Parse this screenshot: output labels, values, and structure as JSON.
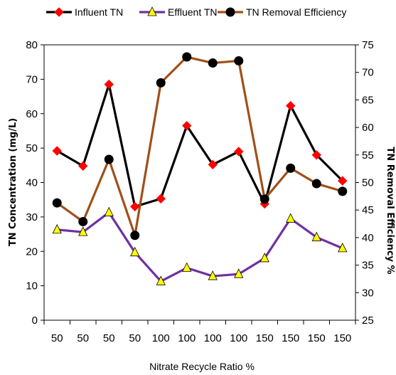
{
  "chart_data": {
    "type": "line",
    "xlabel": "Nitrate Recycle Ratio %",
    "ylabel": "TN Concentration (mg/L)",
    "y2label": "TN Removal Efficiency %",
    "categories": [
      "50",
      "50",
      "50",
      "50",
      "100",
      "100",
      "100",
      "100",
      "150",
      "150",
      "150",
      "150"
    ],
    "ylim": [
      0,
      80
    ],
    "yticks": [
      0,
      10,
      20,
      30,
      40,
      50,
      60,
      70,
      80
    ],
    "y2lim": [
      25,
      75
    ],
    "y2ticks": [
      25,
      30,
      35,
      40,
      45,
      50,
      55,
      60,
      65,
      70,
      75
    ],
    "legend_position": "top",
    "grid": false,
    "series": [
      {
        "name": "Influent TN",
        "axis": "left",
        "line_color": "#000000",
        "marker": "diamond",
        "marker_color": "#ff0000",
        "values": [
          49.2,
          44.8,
          68.5,
          33.0,
          35.3,
          56.5,
          45.2,
          49.0,
          33.8,
          62.3,
          48.0,
          40.5
        ]
      },
      {
        "name": "Effluent TN",
        "axis": "left",
        "line_color": "#7030a0",
        "marker": "triangle",
        "marker_color": "#ffff00",
        "values": [
          26.3,
          25.6,
          31.3,
          19.7,
          11.3,
          15.2,
          12.8,
          13.4,
          18.0,
          29.5,
          24.1,
          20.9
        ]
      },
      {
        "name": "TN Removal Efficiency",
        "axis": "right",
        "line_color": "#a05018",
        "marker": "circle",
        "marker_color": "#000000",
        "values": [
          46.3,
          42.9,
          54.2,
          40.4,
          68.1,
          72.8,
          71.7,
          72.1,
          47.0,
          52.6,
          49.8,
          48.4
        ]
      }
    ]
  }
}
